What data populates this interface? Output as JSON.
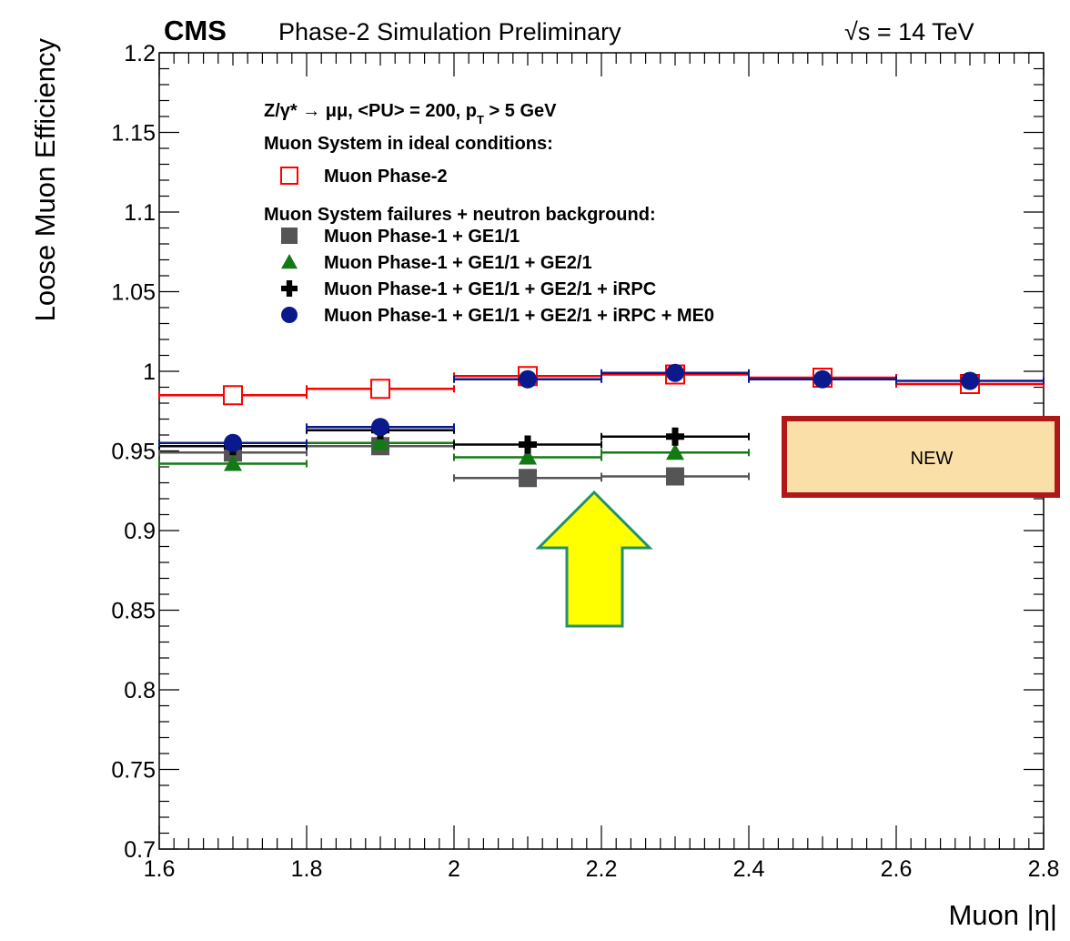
{
  "header": {
    "experiment": "CMS",
    "status": "Phase-2 Simulation Preliminary",
    "energy": "√s = 14 TeV"
  },
  "legend": {
    "process_line": "Z/γ* → μμ, <PU> = 200, pT > 5 GeV",
    "process_main": "Z/γ*  →  μμ, <PU> = 200, p",
    "process_sub": "T",
    "process_tail": " > 5 GeV",
    "ideal_heading": "Muon System in ideal conditions:",
    "failures_heading": "Muon System failures + neutron background:",
    "placement": "upper-left inside plot"
  },
  "annotation": {
    "label": "NEW",
    "box_fill": "#fae0a8",
    "box_border": "#b01818",
    "arrow_fill": "#ffff00",
    "arrow_border": "#229070"
  },
  "chart_data": {
    "type": "scatter",
    "title": "CMS Phase-2 Simulation Preliminary √s = 14 TeV",
    "xlabel": "Muon |η|",
    "ylabel": "Loose Muon Efficiency",
    "xlim": [
      1.6,
      2.8
    ],
    "ylim": [
      0.7,
      1.2
    ],
    "xticks": [
      1.6,
      1.8,
      2.0,
      2.2,
      2.4,
      2.6,
      2.8
    ],
    "xtick_labels": [
      "1.6",
      "1.8",
      "2",
      "2.2",
      "2.4",
      "2.6",
      "2.8"
    ],
    "yticks": [
      0.7,
      0.75,
      0.8,
      0.85,
      0.9,
      0.95,
      1.0,
      1.05,
      1.1,
      1.15,
      1.2
    ],
    "ytick_labels": [
      "0.7",
      "0.75",
      "0.8",
      "0.85",
      "0.9",
      "0.95",
      "1",
      "1.05",
      "1.1",
      "1.15",
      "1.2"
    ],
    "grid": false,
    "series": [
      {
        "name": "Muon Phase-2",
        "color": "#ff0000",
        "marker": "open-square",
        "x": [
          1.7,
          1.9,
          2.1,
          2.3,
          2.5,
          2.7
        ],
        "xerr": [
          0.1,
          0.1,
          0.1,
          0.1,
          0.1,
          0.1
        ],
        "y": [
          0.985,
          0.989,
          0.997,
          0.998,
          0.996,
          0.992
        ]
      },
      {
        "name": "Muon Phase-1 + GE1/1",
        "color": "#555555",
        "marker": "filled-square",
        "x": [
          1.7,
          1.9,
          2.1,
          2.3
        ],
        "xerr": [
          0.1,
          0.1,
          0.1,
          0.1
        ],
        "y": [
          0.949,
          0.953,
          0.933,
          0.934
        ]
      },
      {
        "name": "Muon Phase-1 + GE1/1 + GE2/1",
        "color": "#137a13",
        "marker": "filled-triangle",
        "x": [
          1.7,
          1.9,
          2.1,
          2.3
        ],
        "xerr": [
          0.1,
          0.1,
          0.1,
          0.1
        ],
        "y": [
          0.942,
          0.955,
          0.946,
          0.949
        ]
      },
      {
        "name": "Muon Phase-1 + GE1/1 + GE2/1 + iRPC",
        "color": "#000000",
        "marker": "cross",
        "x": [
          1.7,
          1.9,
          2.1,
          2.3
        ],
        "xerr": [
          0.1,
          0.1,
          0.1,
          0.1
        ],
        "y": [
          0.953,
          0.963,
          0.954,
          0.959
        ]
      },
      {
        "name": "Muon Phase-1 + GE1/1 + GE2/1 + iRPC + ME0",
        "color": "#0a1a8c",
        "marker": "filled-circle",
        "x": [
          1.7,
          1.9,
          2.1,
          2.3,
          2.5,
          2.7
        ],
        "xerr": [
          0.1,
          0.1,
          0.1,
          0.1,
          0.1,
          0.1
        ],
        "y": [
          0.955,
          0.965,
          0.995,
          0.999,
          0.995,
          0.994
        ]
      }
    ]
  }
}
